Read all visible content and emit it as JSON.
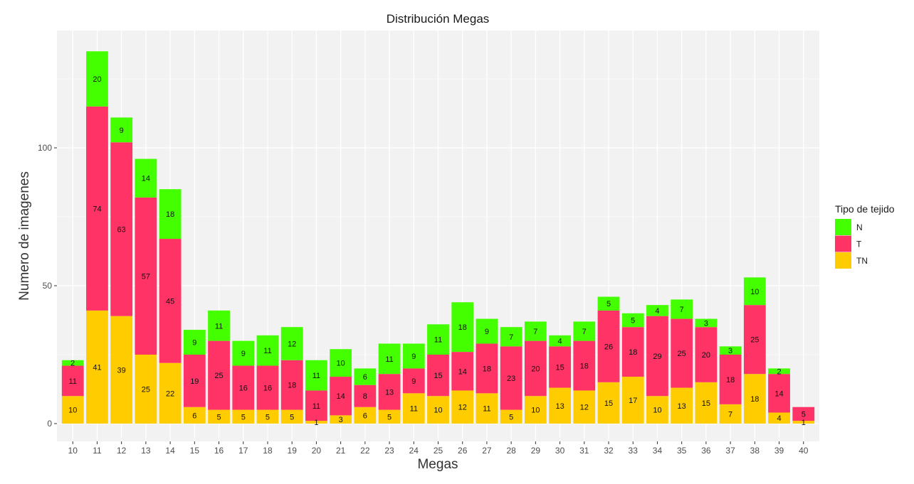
{
  "chart_data": {
    "type": "bar",
    "stacked": true,
    "title": "Distribución Megas",
    "xlabel": "Megas",
    "ylabel": "Numero de imagenes",
    "ylim": [
      0,
      141
    ],
    "yticks": [
      0,
      50,
      100
    ],
    "grid": true,
    "legend": {
      "title": "Tipo de tejido",
      "position": "right",
      "entries": [
        "N",
        "T",
        "TN"
      ]
    },
    "categories": [
      "10",
      "11",
      "12",
      "13",
      "14",
      "15",
      "16",
      "17",
      "18",
      "19",
      "20",
      "21",
      "22",
      "23",
      "24",
      "25",
      "26",
      "27",
      "28",
      "29",
      "30",
      "31",
      "32",
      "33",
      "34",
      "35",
      "36",
      "37",
      "38",
      "39",
      "40"
    ],
    "series": [
      {
        "name": "TN",
        "color": "#ffcc00",
        "values": [
          10,
          41,
          39,
          25,
          22,
          6,
          5,
          5,
          5,
          5,
          1,
          3,
          6,
          5,
          11,
          10,
          12,
          11,
          5,
          10,
          13,
          12,
          15,
          17,
          10,
          13,
          15,
          7,
          18,
          4,
          1
        ]
      },
      {
        "name": "T",
        "color": "#ff3366",
        "values": [
          11,
          74,
          63,
          57,
          45,
          19,
          25,
          16,
          16,
          18,
          11,
          14,
          8,
          13,
          9,
          15,
          14,
          18,
          23,
          20,
          15,
          18,
          26,
          18,
          29,
          25,
          20,
          18,
          25,
          14,
          5
        ]
      },
      {
        "name": "N",
        "color": "#44ff00",
        "values": [
          2,
          20,
          9,
          14,
          18,
          9,
          11,
          9,
          11,
          12,
          11,
          10,
          6,
          11,
          9,
          11,
          18,
          9,
          7,
          7,
          4,
          7,
          5,
          5,
          4,
          7,
          3,
          3,
          10,
          2,
          0
        ]
      }
    ]
  }
}
